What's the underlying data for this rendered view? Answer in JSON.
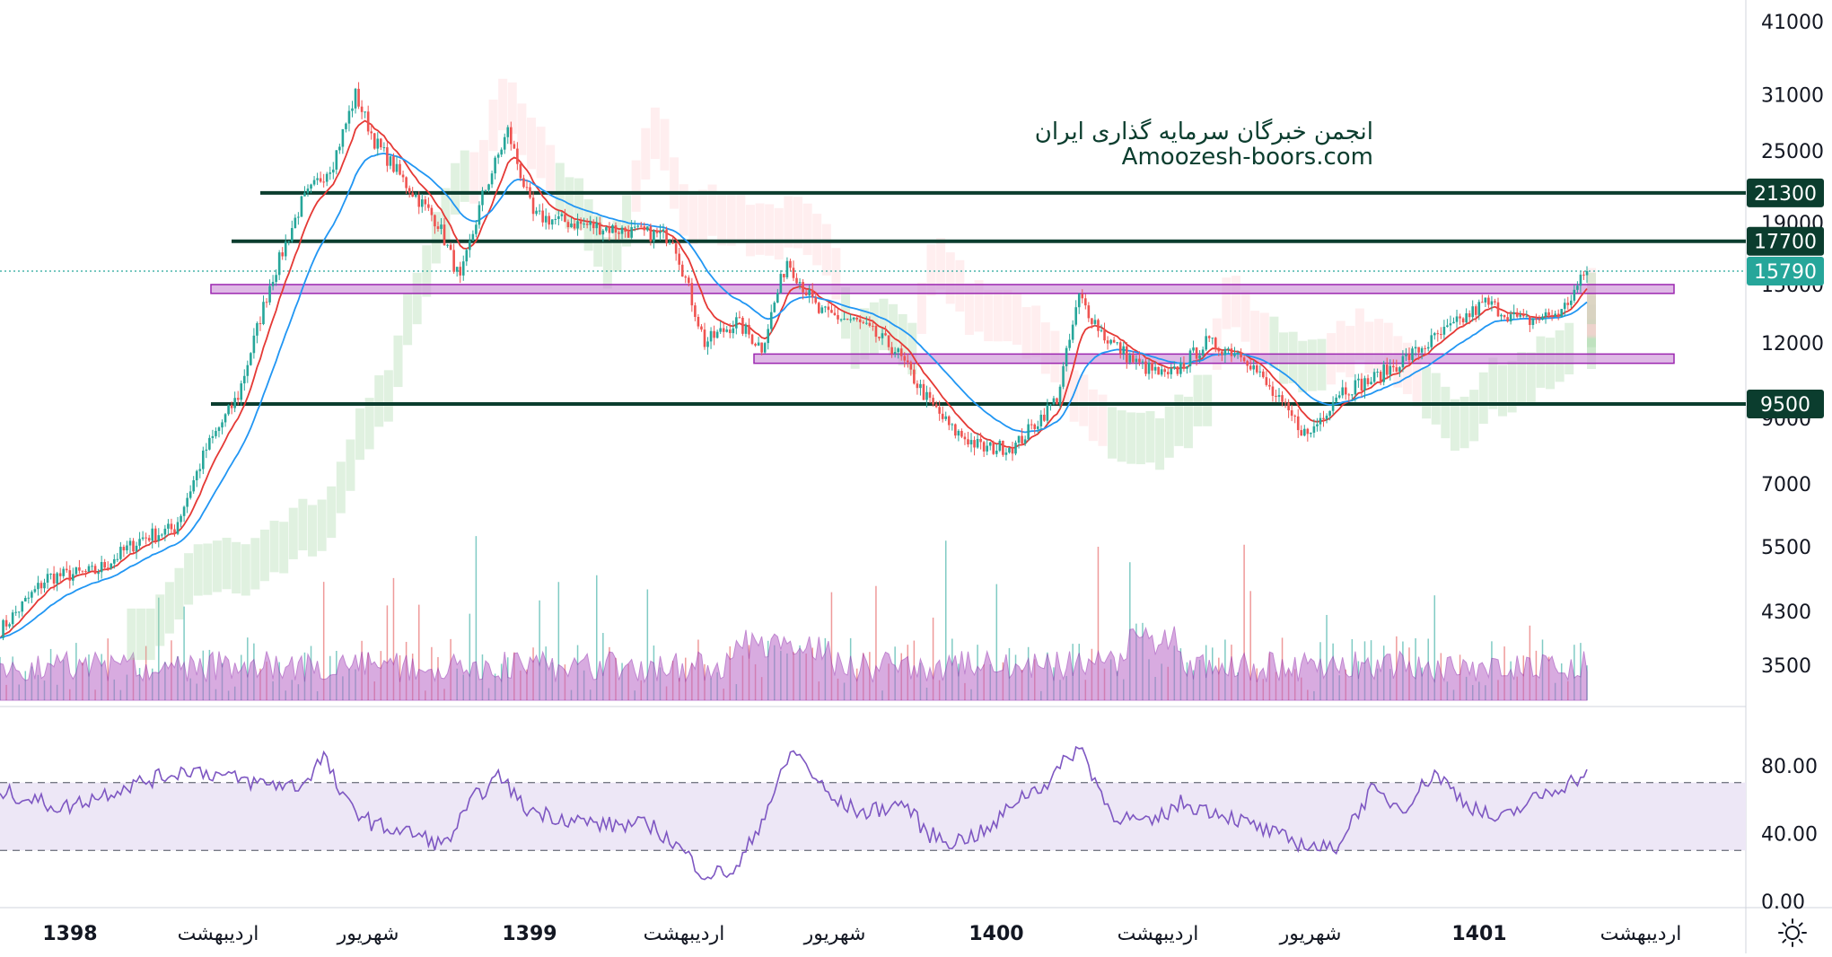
{
  "watermark": {
    "line1": "انجمن خبرگان سرمایه گذاری ایران",
    "line2": "Amoozesh-boors.com"
  },
  "price_axis": {
    "ticks": [
      "41000",
      "31000",
      "25000",
      "19000",
      "15000",
      "12000",
      "9000",
      "7000",
      "5500",
      "4300",
      "3500"
    ]
  },
  "price_badges": [
    {
      "label": "21300",
      "color": "#0b3d2e"
    },
    {
      "label": "17700",
      "color": "#0b3d2e"
    },
    {
      "label": "15790",
      "color": "#26a69a"
    },
    {
      "label": "9500",
      "color": "#0b3d2e"
    }
  ],
  "rsi_axis": {
    "ticks": [
      "80.00",
      "40.00",
      "0.00"
    ]
  },
  "time_axis": {
    "labels": [
      "1398",
      "اردیبهشت",
      "شهریور",
      "1399",
      "اردیبهشت",
      "شهریور",
      "1400",
      "اردیبهشت",
      "شهریور",
      "1401",
      "اردیبهشت"
    ]
  },
  "settings": {
    "icon": "sun-settings-icon"
  },
  "colors": {
    "up": "#26a69a",
    "down": "#ef5350",
    "ema_fast": "#e53935",
    "ema_slow": "#2196f3",
    "level_line": "#0b3d2e",
    "zone_fill": "#ce93d8",
    "zone_stroke": "#9c27b0",
    "rsi_line": "#7e57c2",
    "rsi_band": "#ede7f6",
    "volume_area": "#ba68c8"
  },
  "chart_data": [
    {
      "type": "candlestick",
      "scale": "log",
      "ylim": [
        3300,
        44000
      ],
      "horizontal_levels": [
        21300,
        17700,
        9500
      ],
      "last_price": 15790,
      "support_resistance_zones": [
        [
          14500,
          15000
        ],
        [
          11100,
          11500
        ]
      ],
      "x_labels": [
        "1398",
        "اردیبهشت",
        "شهریور",
        "1399",
        "اردیبهشت",
        "شهریور",
        "1400",
        "اردیبهشت",
        "شهریور",
        "1401",
        "اردیبهشت"
      ],
      "price_path": [
        [
          0,
          4000
        ],
        [
          15,
          4900
        ],
        [
          30,
          5000
        ],
        [
          45,
          5700
        ],
        [
          55,
          5900
        ],
        [
          65,
          8000
        ],
        [
          75,
          9800
        ],
        [
          85,
          15000
        ],
        [
          95,
          20500
        ],
        [
          105,
          24000
        ],
        [
          112,
          31000
        ],
        [
          118,
          26000
        ],
        [
          128,
          22000
        ],
        [
          138,
          19000
        ],
        [
          145,
          15200
        ],
        [
          152,
          21000
        ],
        [
          160,
          27000
        ],
        [
          168,
          19500
        ],
        [
          180,
          19000
        ],
        [
          195,
          18500
        ],
        [
          212,
          18000
        ],
        [
          222,
          12000
        ],
        [
          232,
          13000
        ],
        [
          240,
          11800
        ],
        [
          248,
          16500
        ],
        [
          258,
          13500
        ],
        [
          270,
          13000
        ],
        [
          282,
          11700
        ],
        [
          292,
          9700
        ],
        [
          300,
          8600
        ],
        [
          310,
          8000
        ],
        [
          320,
          8100
        ],
        [
          333,
          9700
        ],
        [
          340,
          14300
        ],
        [
          348,
          12300
        ],
        [
          358,
          11100
        ],
        [
          368,
          10500
        ],
        [
          380,
          12000
        ],
        [
          392,
          11500
        ],
        [
          402,
          9700
        ],
        [
          412,
          8400
        ],
        [
          422,
          10000
        ],
        [
          432,
          10400
        ],
        [
          445,
          11500
        ],
        [
          458,
          12800
        ],
        [
          468,
          14000
        ],
        [
          480,
          13000
        ],
        [
          492,
          13500
        ],
        [
          500,
          15790
        ]
      ]
    },
    {
      "type": "line",
      "name": "RSI",
      "ylim": [
        0,
        100
      ],
      "bands": [
        30,
        70
      ],
      "rsi_path": [
        [
          0,
          65
        ],
        [
          20,
          55
        ],
        [
          40,
          68
        ],
        [
          60,
          78
        ],
        [
          80,
          70
        ],
        [
          95,
          68
        ],
        [
          102,
          86
        ],
        [
          108,
          60
        ],
        [
          118,
          45
        ],
        [
          130,
          40
        ],
        [
          140,
          33
        ],
        [
          150,
          62
        ],
        [
          158,
          74
        ],
        [
          165,
          55
        ],
        [
          175,
          50
        ],
        [
          190,
          45
        ],
        [
          205,
          45
        ],
        [
          215,
          30
        ],
        [
          222,
          16
        ],
        [
          232,
          18
        ],
        [
          240,
          48
        ],
        [
          250,
          90
        ],
        [
          262,
          60
        ],
        [
          272,
          52
        ],
        [
          285,
          58
        ],
        [
          292,
          40
        ],
        [
          300,
          35
        ],
        [
          312,
          42
        ],
        [
          320,
          60
        ],
        [
          330,
          70
        ],
        [
          340,
          92
        ],
        [
          350,
          52
        ],
        [
          362,
          45
        ],
        [
          372,
          58
        ],
        [
          385,
          52
        ],
        [
          398,
          42
        ],
        [
          408,
          35
        ],
        [
          420,
          30
        ],
        [
          432,
          65
        ],
        [
          442,
          55
        ],
        [
          452,
          76
        ],
        [
          462,
          58
        ],
        [
          472,
          47
        ],
        [
          485,
          62
        ],
        [
          500,
          75
        ]
      ]
    }
  ]
}
